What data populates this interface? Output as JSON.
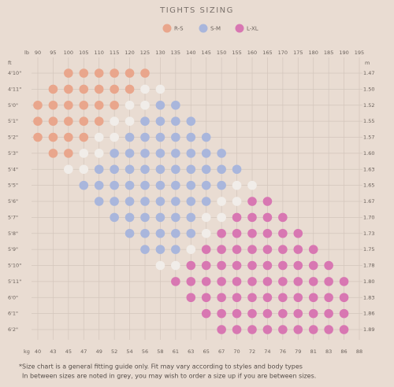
{
  "chart_data": {
    "type": "dot-matrix",
    "title": "TIGHTS SIZING",
    "x_label": "lb",
    "x2_label": "kg",
    "y_label": "ft",
    "y2_label": "m",
    "xlim": [
      90,
      195
    ],
    "xticks": [
      90,
      95,
      100,
      105,
      110,
      115,
      120,
      125,
      130,
      135,
      140,
      145,
      150,
      155,
      160,
      165,
      170,
      175,
      180,
      185,
      190,
      195
    ],
    "x2ticks": [
      40,
      43,
      45,
      47,
      49,
      52,
      54,
      56,
      58,
      61,
      63,
      65,
      67,
      70,
      72,
      74,
      76,
      79,
      81,
      83,
      86,
      88
    ],
    "y_categories": [
      "4'10\"",
      "4'11\"",
      "5'0\"",
      "5'1\"",
      "5'2\"",
      "5'3\"",
      "5'4\"",
      "5'5\"",
      "5'6\"",
      "5'7\"",
      "5'8\"",
      "5'9\"",
      "5'10\"",
      "5'11\"",
      "6'0\"",
      "6'1\"",
      "6'2\""
    ],
    "y2_categories": [
      "1.47",
      "1.50",
      "1.52",
      "1.55",
      "1.57",
      "1.60",
      "1.63",
      "1.65",
      "1.67",
      "1.70",
      "1.73",
      "1.75",
      "1.78",
      "1.80",
      "1.83",
      "1.86",
      "1.89"
    ],
    "grid": true,
    "series": [
      {
        "name": "R-S",
        "color": "#e9a68c",
        "values": [
          [
            100,
            105,
            110,
            115,
            120,
            125
          ],
          [
            95,
            100,
            105,
            110,
            115,
            120
          ],
          [
            90,
            95,
            100,
            105,
            110,
            115
          ],
          [
            90,
            95,
            100,
            105,
            110
          ],
          [
            90,
            95,
            100,
            105
          ],
          [
            95,
            100
          ],
          [],
          [],
          [],
          [],
          [],
          [],
          [],
          [],
          [],
          [],
          []
        ]
      },
      {
        "name": "S-M",
        "color": "#a9b6dc",
        "values": [
          [],
          [],
          [
            130,
            135
          ],
          [
            125,
            130,
            135,
            140
          ],
          [
            120,
            125,
            130,
            135,
            140,
            145
          ],
          [
            115,
            120,
            125,
            130,
            135,
            140,
            145,
            150
          ],
          [
            110,
            115,
            120,
            125,
            130,
            135,
            140,
            145,
            150,
            155
          ],
          [
            105,
            110,
            115,
            120,
            125,
            130,
            135,
            140,
            145,
            150
          ],
          [
            110,
            115,
            120,
            125,
            130,
            135,
            140,
            145
          ],
          [
            115,
            120,
            125,
            130,
            135,
            140
          ],
          [
            120,
            125,
            130,
            135,
            140
          ],
          [
            125,
            130,
            135
          ],
          [],
          [],
          [],
          [],
          []
        ]
      },
      {
        "name": "L-XL",
        "color": "#d877b2",
        "values": [
          [],
          [],
          [],
          [],
          [],
          [],
          [],
          [],
          [
            160,
            165
          ],
          [
            155,
            160,
            165,
            170
          ],
          [
            150,
            155,
            160,
            165,
            170,
            175
          ],
          [
            145,
            150,
            155,
            160,
            165,
            170,
            175,
            180
          ],
          [
            140,
            145,
            150,
            155,
            160,
            165,
            170,
            175,
            180,
            185
          ],
          [
            135,
            140,
            145,
            150,
            155,
            160,
            165,
            170,
            175,
            180,
            185,
            190
          ],
          [
            140,
            145,
            150,
            155,
            160,
            165,
            170,
            175,
            180,
            185,
            190
          ],
          [
            145,
            150,
            155,
            160,
            165,
            170,
            175,
            180,
            185,
            190
          ],
          [
            150,
            155,
            160,
            165,
            170,
            175,
            180,
            185,
            190
          ]
        ]
      },
      {
        "color": "#f1ede9",
        "values": [
          [],
          [
            125,
            130
          ],
          [
            120,
            125
          ],
          [
            115,
            120
          ],
          [
            110,
            115
          ],
          [
            105,
            110
          ],
          [
            100,
            105
          ],
          [
            155,
            160
          ],
          [
            150,
            155
          ],
          [
            145,
            150
          ],
          [
            145
          ],
          [
            140
          ],
          [
            130,
            135
          ],
          [],
          [],
          [],
          []
        ]
      }
    ],
    "notes": [
      "*Size chart is a general fitting guide only. Fit may vary according to styles and body types",
      "In between sizes are noted in grey, you may wish to order a size up if you are between sizes."
    ]
  }
}
